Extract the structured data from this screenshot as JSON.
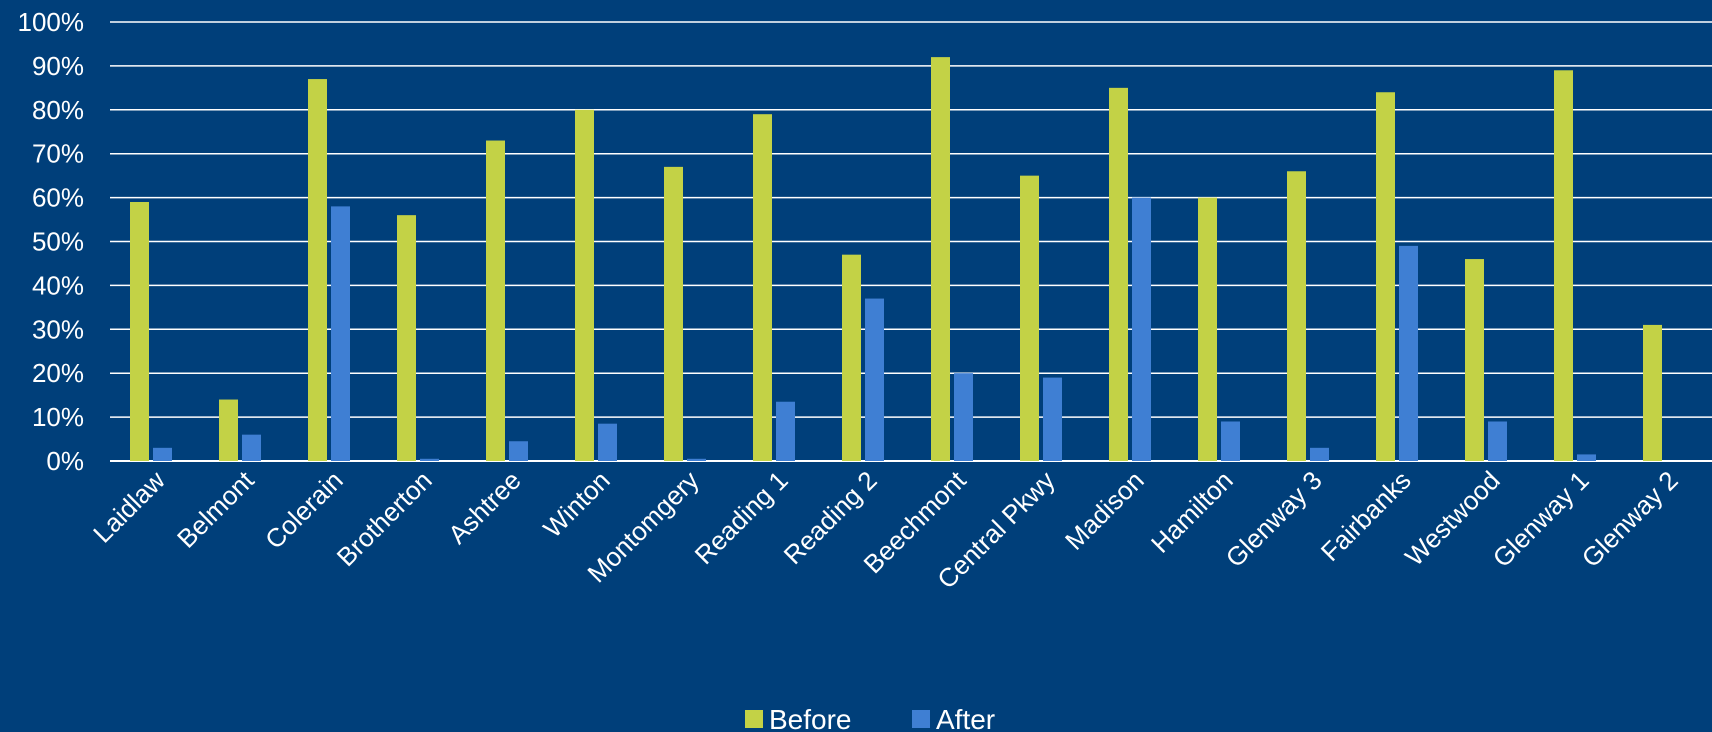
{
  "chart_data": {
    "type": "bar",
    "categories": [
      "Laidlaw",
      "Belmont",
      "Colerain",
      "Brotherton",
      "Ashtree",
      "Winton",
      "Montomgery",
      "Reading 1",
      "Reading 2",
      "Beechmont",
      "Central Pkwy",
      "Madison",
      "Hamilton",
      "Glenway 3",
      "Fairbanks",
      "Westwood",
      "Glenway 1",
      "Glenway 2"
    ],
    "series": [
      {
        "name": "Before",
        "color": "#C3D246",
        "values": [
          59,
          14,
          87,
          56,
          73,
          80,
          67,
          79,
          47,
          92,
          65,
          85,
          60,
          66,
          84,
          46,
          89,
          31
        ]
      },
      {
        "name": "After",
        "color": "#3F7FD3",
        "values": [
          3,
          6,
          58,
          0.5,
          4.5,
          8.5,
          0.5,
          13.5,
          37,
          20,
          19,
          60,
          9,
          3,
          49,
          9,
          1.5,
          0
        ]
      }
    ],
    "yticks": [
      "0%",
      "10%",
      "20%",
      "30%",
      "40%",
      "50%",
      "60%",
      "70%",
      "80%",
      "90%",
      "100%"
    ],
    "ylim": [
      0,
      100
    ],
    "grid": true,
    "legend_position": "bottom",
    "colors": {
      "background": "#003F7A",
      "grid": "#FFFFFF",
      "text": "#FFFFFF"
    }
  }
}
